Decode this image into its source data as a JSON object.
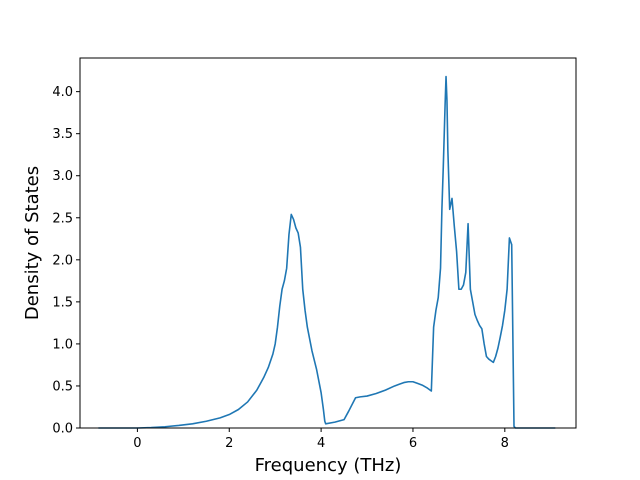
{
  "chart_data": {
    "type": "line",
    "title": "",
    "xlabel": "Frequency (THz)",
    "ylabel": "Density of States",
    "xlim": [
      -1.25,
      9.55
    ],
    "ylim": [
      0.0,
      4.4
    ],
    "grid": false,
    "x_ticks": [
      0,
      2,
      4,
      6,
      8
    ],
    "x_tick_labels": [
      "0",
      "2",
      "4",
      "6",
      "8"
    ],
    "y_ticks": [
      0.0,
      0.5,
      1.0,
      1.5,
      2.0,
      2.5,
      3.0,
      3.5,
      4.0
    ],
    "y_tick_labels": [
      "0.0",
      "0.5",
      "1.0",
      "1.5",
      "2.0",
      "2.5",
      "3.0",
      "3.5",
      "4.0"
    ],
    "series": [
      {
        "color": "#1f77b4",
        "x": [
          -0.85,
          -0.4,
          0.0,
          0.3,
          0.6,
          0.9,
          1.2,
          1.5,
          1.8,
          2.0,
          2.2,
          2.4,
          2.6,
          2.75,
          2.85,
          2.95,
          3.0,
          3.05,
          3.1,
          3.15,
          3.2,
          3.25,
          3.3,
          3.35,
          3.4,
          3.45,
          3.5,
          3.55,
          3.6,
          3.65,
          3.7,
          3.8,
          3.9,
          4.0,
          4.05,
          4.08,
          4.1,
          4.3,
          4.5,
          4.6,
          4.75,
          4.85,
          5.0,
          5.2,
          5.4,
          5.6,
          5.7,
          5.8,
          5.9,
          6.0,
          6.1,
          6.2,
          6.3,
          6.4,
          6.45,
          6.5,
          6.55,
          6.6,
          6.63,
          6.66,
          6.7,
          6.72,
          6.74,
          6.76,
          6.8,
          6.85,
          6.9,
          6.95,
          7.0,
          7.05,
          7.1,
          7.15,
          7.2,
          7.25,
          7.3,
          7.35,
          7.4,
          7.45,
          7.5,
          7.55,
          7.6,
          7.65,
          7.7,
          7.75,
          7.8,
          7.85,
          7.9,
          7.95,
          8.0,
          8.05,
          8.1,
          8.15,
          8.2,
          8.23,
          8.25,
          8.3,
          8.5,
          9.1
        ],
        "y": [
          0.0,
          0.0,
          0.0,
          0.005,
          0.015,
          0.03,
          0.05,
          0.08,
          0.12,
          0.16,
          0.22,
          0.31,
          0.45,
          0.6,
          0.72,
          0.88,
          1.0,
          1.2,
          1.45,
          1.65,
          1.75,
          1.9,
          2.3,
          2.54,
          2.48,
          2.38,
          2.32,
          2.15,
          1.65,
          1.4,
          1.2,
          0.92,
          0.7,
          0.42,
          0.22,
          0.08,
          0.05,
          0.07,
          0.1,
          0.2,
          0.36,
          0.37,
          0.38,
          0.41,
          0.45,
          0.5,
          0.52,
          0.54,
          0.55,
          0.55,
          0.53,
          0.51,
          0.48,
          0.44,
          1.2,
          1.4,
          1.55,
          1.9,
          2.6,
          3.1,
          3.85,
          4.18,
          3.9,
          3.3,
          2.6,
          2.73,
          2.4,
          2.1,
          1.65,
          1.65,
          1.7,
          1.85,
          2.43,
          1.65,
          1.5,
          1.35,
          1.28,
          1.22,
          1.18,
          1.0,
          0.85,
          0.82,
          0.8,
          0.78,
          0.85,
          0.95,
          1.08,
          1.22,
          1.4,
          1.65,
          2.26,
          2.18,
          0.02,
          0.0,
          0.0,
          0.0,
          0.0,
          0.0
        ]
      }
    ]
  }
}
